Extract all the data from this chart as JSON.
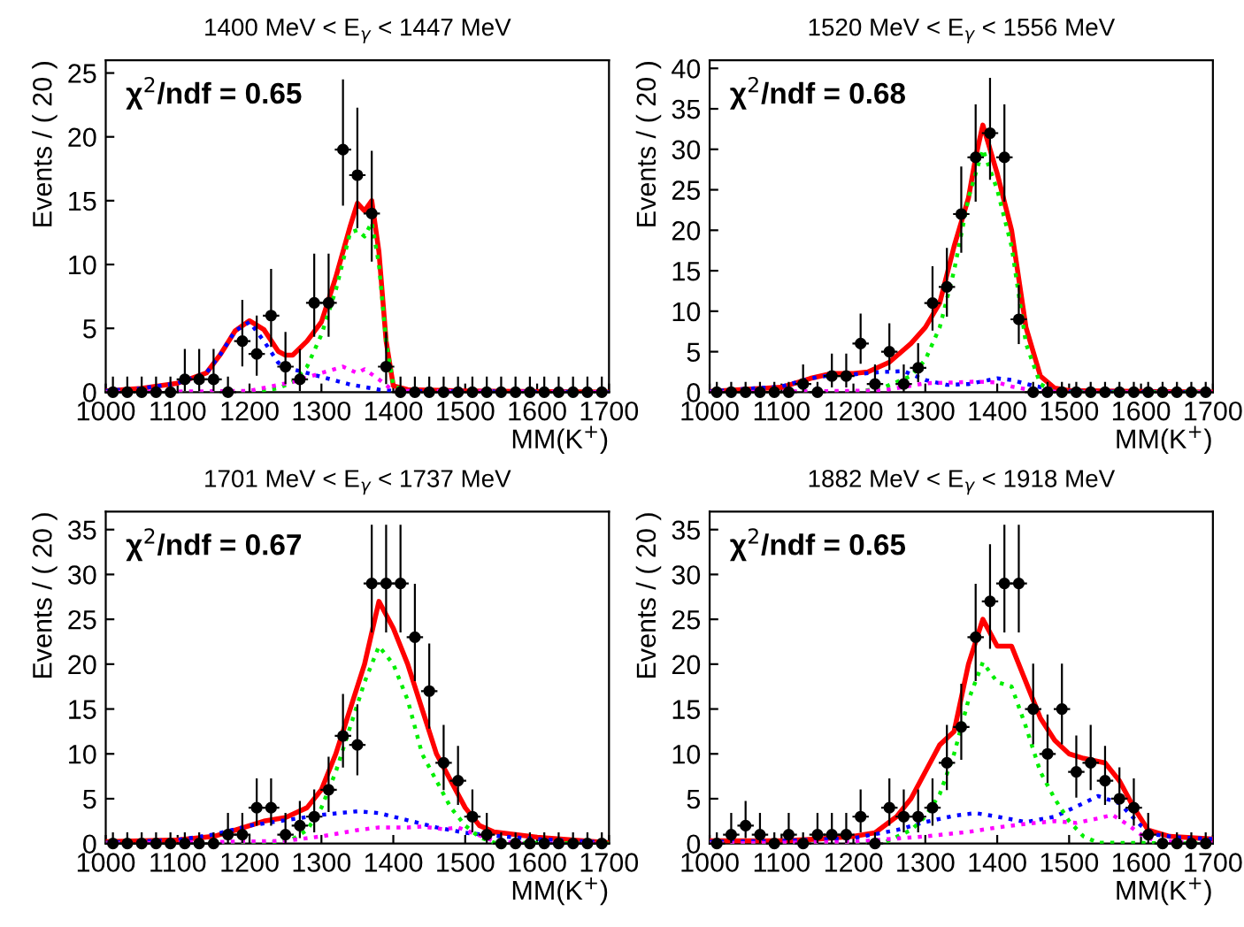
{
  "chart_data": [
    {
      "type": "scatter",
      "title": "1400 MeV < E$_{γ}$ < 1447 MeV",
      "xlabel": "MM(K$^{+}$)",
      "ylabel": "Events / ( 20 )",
      "annotations": [
        "χ$^{2}$/ndf = 0.65"
      ],
      "xlim": [
        1000,
        1700
      ],
      "xticks": [
        1000,
        1100,
        1200,
        1300,
        1400,
        1500,
        1600,
        1700
      ],
      "ylim": [
        0,
        26
      ],
      "yticks": [
        0,
        5,
        10,
        15,
        20,
        25
      ],
      "grid": false,
      "legend": false,
      "series": [
        {
          "color": "#000000",
          "marker": "circle",
          "x": [
            1010,
            1030,
            1050,
            1070,
            1090,
            1110,
            1130,
            1150,
            1170,
            1190,
            1210,
            1230,
            1250,
            1270,
            1290,
            1310,
            1330,
            1350,
            1370,
            1390,
            1410,
            1430,
            1450,
            1470,
            1490,
            1510,
            1530,
            1550,
            1570,
            1590,
            1610,
            1630,
            1650,
            1670,
            1690
          ],
          "values": [
            0,
            0,
            0,
            0,
            0,
            1,
            1,
            1,
            0,
            4,
            3,
            6,
            2,
            1,
            7,
            7,
            19,
            17,
            14,
            2,
            0,
            0,
            0,
            0,
            0,
            0,
            0,
            0,
            0,
            0,
            0,
            0,
            0,
            0,
            0
          ],
          "xerrors": [
            10,
            10,
            10,
            10,
            10,
            10,
            10,
            10,
            10,
            10,
            10,
            10,
            10,
            10,
            10,
            10,
            10,
            10,
            10,
            10,
            10,
            10,
            10,
            10,
            10,
            10,
            10,
            10,
            10,
            10,
            10,
            10,
            10,
            10,
            10
          ],
          "errors": [
            [
              0,
              1.15
            ],
            [
              0,
              1.15
            ],
            [
              0,
              1.15
            ],
            [
              0,
              1.15
            ],
            [
              0,
              1.15
            ],
            [
              0.17,
              3.3
            ],
            [
              0.17,
              3.3
            ],
            [
              0.17,
              3.3
            ],
            [
              0,
              1.15
            ],
            [
              2.09,
              7.16
            ],
            [
              1.37,
              5.92
            ],
            [
              3.62,
              9.58
            ],
            [
              0.71,
              4.64
            ],
            [
              0.17,
              3.3
            ],
            [
              4.42,
              10.77
            ],
            [
              4.42,
              10.77
            ],
            [
              14.68,
              24.43
            ],
            [
              12.92,
              22.2
            ],
            [
              10.3,
              18.83
            ],
            [
              0.71,
              4.64
            ],
            [
              0,
              1.15
            ],
            [
              0,
              1.15
            ],
            [
              0,
              1.15
            ],
            [
              0,
              1.15
            ],
            [
              0,
              1.15
            ],
            [
              0,
              1.15
            ],
            [
              0,
              1.15
            ],
            [
              0,
              1.15
            ],
            [
              0,
              1.15
            ],
            [
              0,
              1.15
            ],
            [
              0,
              1.15
            ],
            [
              0,
              1.15
            ],
            [
              0,
              1.15
            ],
            [
              0,
              1.15
            ],
            [
              0,
              1.15
            ]
          ]
        },
        {
          "type": "line",
          "color": "#ff0000",
          "line_style": "solid",
          "x": [
            1000,
            1050,
            1100,
            1140,
            1160,
            1180,
            1200,
            1220,
            1240,
            1250,
            1260,
            1280,
            1300,
            1320,
            1340,
            1350,
            1360,
            1370,
            1380,
            1390,
            1400,
            1420,
            1500,
            1700
          ],
          "values": [
            0.1,
            0.3,
            0.7,
            1.5,
            3,
            4.8,
            5.6,
            4.9,
            3.2,
            2.9,
            2.9,
            4,
            5.5,
            9,
            13,
            14.8,
            14.2,
            15,
            11,
            4,
            0.5,
            0.2,
            0.1,
            0
          ]
        },
        {
          "type": "line",
          "color": "#0000ff",
          "line_style": "dotted",
          "x": [
            1000,
            1050,
            1100,
            1140,
            1160,
            1180,
            1200,
            1220,
            1240,
            1260,
            1280,
            1300,
            1320,
            1340,
            1360,
            1380,
            1400,
            1700
          ],
          "values": [
            0.1,
            0.3,
            0.7,
            1.5,
            3,
            4.8,
            5.5,
            4,
            2.3,
            1.8,
            1.5,
            1.2,
            0.9,
            0.6,
            0.4,
            0.2,
            0.1,
            0
          ]
        },
        {
          "type": "line",
          "color": "#00ee00",
          "line_style": "dotted",
          "x": [
            1000,
            1200,
            1240,
            1260,
            1280,
            1300,
            1320,
            1340,
            1350,
            1360,
            1370,
            1380,
            1390,
            1400,
            1420,
            1700
          ],
          "values": [
            0,
            0,
            0.3,
            0.8,
            2,
            4.5,
            8,
            12.5,
            12.7,
            12.2,
            13.3,
            10,
            4,
            0.5,
            0,
            0
          ]
        },
        {
          "type": "line",
          "color": "#ff00ff",
          "line_style": "dotted",
          "x": [
            1000,
            1200,
            1260,
            1300,
            1330,
            1350,
            1360,
            1380,
            1400,
            1700
          ],
          "values": [
            0,
            0.1,
            0.8,
            1.5,
            2,
            1.5,
            1.8,
            1,
            0.1,
            0
          ]
        }
      ]
    },
    {
      "type": "scatter",
      "title": "1520 MeV < E$_{γ}$ < 1556 MeV",
      "xlabel": "MM(K$^{+}$)",
      "ylabel": "Events / ( 20 )",
      "annotations": [
        "χ$^{2}$/ndf = 0.68"
      ],
      "xlim": [
        1000,
        1700
      ],
      "xticks": [
        1000,
        1100,
        1200,
        1300,
        1400,
        1500,
        1600,
        1700
      ],
      "ylim": [
        0,
        41
      ],
      "yticks": [
        0,
        5,
        10,
        15,
        20,
        25,
        30,
        35,
        40
      ],
      "grid": false,
      "legend": false,
      "series": [
        {
          "color": "#000000",
          "marker": "circle",
          "x": [
            1010,
            1030,
            1050,
            1070,
            1090,
            1110,
            1130,
            1150,
            1170,
            1190,
            1210,
            1230,
            1250,
            1270,
            1290,
            1310,
            1330,
            1350,
            1370,
            1390,
            1410,
            1430,
            1450,
            1470,
            1490,
            1510,
            1530,
            1550,
            1570,
            1590,
            1610,
            1630,
            1650,
            1670,
            1690
          ],
          "values": [
            0,
            0,
            0,
            0,
            0,
            0,
            1,
            0,
            2,
            2,
            6,
            1,
            5,
            1,
            3,
            11,
            13,
            22,
            29,
            32,
            29,
            9,
            0,
            0,
            0,
            0,
            0,
            0,
            0,
            0,
            0,
            0,
            0,
            0,
            0
          ],
          "xerrors": [
            10,
            10,
            10,
            10,
            10,
            10,
            10,
            10,
            10,
            10,
            10,
            10,
            10,
            10,
            10,
            10,
            10,
            10,
            10,
            10,
            10,
            10,
            10,
            10,
            10,
            10,
            10,
            10,
            10,
            10,
            10,
            10,
            10,
            10,
            10
          ],
          "errors": [
            [
              0,
              1.15
            ],
            [
              0,
              1.15
            ],
            [
              0,
              1.15
            ],
            [
              0,
              1.15
            ],
            [
              0,
              1.15
            ],
            [
              0,
              1.15
            ],
            [
              0.17,
              3.3
            ],
            [
              0,
              1.15
            ],
            [
              0.71,
              4.64
            ],
            [
              0.71,
              4.64
            ],
            [
              3.62,
              9.58
            ],
            [
              0.17,
              3.3
            ],
            [
              2.84,
              8.38
            ],
            [
              0.17,
              3.3
            ],
            [
              1.37,
              5.92
            ],
            [
              7.73,
              15.42
            ],
            [
              9.44,
              17.7
            ],
            [
              17.34,
              27.76
            ],
            [
              23.64,
              35.44
            ],
            [
              26.37,
              38.7
            ],
            [
              23.64,
              35.44
            ],
            [
              6.06,
              13.11
            ],
            [
              0,
              1.15
            ],
            [
              0,
              1.15
            ],
            [
              0,
              1.15
            ],
            [
              0,
              1.15
            ],
            [
              0,
              1.15
            ],
            [
              0,
              1.15
            ],
            [
              0,
              1.15
            ],
            [
              0,
              1.15
            ],
            [
              0,
              1.15
            ],
            [
              0,
              1.15
            ],
            [
              0,
              1.15
            ],
            [
              0,
              1.15
            ],
            [
              0,
              1.15
            ]
          ]
        },
        {
          "type": "line",
          "color": "#ff0000",
          "line_style": "solid",
          "x": [
            1000,
            1100,
            1140,
            1170,
            1200,
            1220,
            1250,
            1280,
            1300,
            1320,
            1340,
            1360,
            1370,
            1380,
            1390,
            1400,
            1420,
            1440,
            1460,
            1480,
            1500,
            1600,
            1700
          ],
          "values": [
            0.1,
            0.6,
            1.7,
            2.3,
            2.3,
            2.5,
            3.7,
            6,
            8,
            11,
            18,
            24,
            29,
            33,
            30,
            27,
            20,
            8,
            2,
            0.5,
            0.2,
            0.1,
            0
          ]
        },
        {
          "type": "line",
          "color": "#0000ff",
          "line_style": "dotted",
          "x": [
            1000,
            1100,
            1140,
            1170,
            1200,
            1240,
            1270,
            1300,
            1330,
            1360,
            1400,
            1420,
            1450,
            1480,
            1500,
            1700
          ],
          "values": [
            0.1,
            0.7,
            1.7,
            2.1,
            2.2,
            2.5,
            2.6,
            1.5,
            0.9,
            1,
            1.7,
            1.5,
            0.8,
            0.3,
            0.1,
            0
          ]
        },
        {
          "type": "line",
          "color": "#00ee00",
          "line_style": "dotted",
          "x": [
            1000,
            1200,
            1240,
            1280,
            1300,
            1320,
            1340,
            1360,
            1380,
            1400,
            1420,
            1440,
            1460,
            1480,
            1700
          ],
          "values": [
            0,
            0,
            0.5,
            2,
            4,
            8,
            15,
            24,
            30,
            25,
            18,
            6,
            1,
            0,
            0
          ]
        },
        {
          "type": "line",
          "color": "#ff00ff",
          "line_style": "dotted",
          "x": [
            1000,
            1240,
            1280,
            1300,
            1340,
            1370,
            1400,
            1420,
            1450,
            1500,
            1700
          ],
          "values": [
            0,
            0.2,
            0.8,
            1.1,
            1.2,
            1.3,
            1.2,
            0.7,
            0.2,
            0,
            0
          ]
        }
      ]
    },
    {
      "type": "scatter",
      "title": "1701 MeV < E$_{γ}$ < 1737 MeV",
      "xlabel": "MM(K$^{+}$)",
      "ylabel": "Events / ( 20 )",
      "annotations": [
        "χ$^{2}$/ndf = 0.67"
      ],
      "xlim": [
        1000,
        1700
      ],
      "xticks": [
        1000,
        1100,
        1200,
        1300,
        1400,
        1500,
        1600,
        1700
      ],
      "ylim": [
        0,
        37
      ],
      "yticks": [
        0,
        5,
        10,
        15,
        20,
        25,
        30,
        35
      ],
      "grid": false,
      "legend": false,
      "series": [
        {
          "color": "#000000",
          "marker": "circle",
          "x": [
            1010,
            1030,
            1050,
            1070,
            1090,
            1110,
            1130,
            1150,
            1170,
            1190,
            1210,
            1230,
            1250,
            1270,
            1290,
            1310,
            1330,
            1350,
            1370,
            1390,
            1410,
            1430,
            1450,
            1470,
            1490,
            1510,
            1530,
            1550,
            1570,
            1590,
            1610,
            1630,
            1650,
            1670,
            1690
          ],
          "values": [
            0,
            0,
            0,
            0,
            0,
            0,
            0,
            0,
            1,
            1,
            4,
            4,
            1,
            2,
            3,
            6,
            12,
            11,
            29,
            29,
            29,
            23,
            17,
            9,
            7,
            3,
            1,
            0,
            0,
            0,
            0,
            0,
            0,
            0,
            0
          ],
          "xerrors": [
            10,
            10,
            10,
            10,
            10,
            10,
            10,
            10,
            10,
            10,
            10,
            10,
            10,
            10,
            10,
            10,
            10,
            10,
            10,
            10,
            10,
            10,
            10,
            10,
            10,
            10,
            10,
            10,
            10,
            10,
            10,
            10,
            10,
            10,
            10
          ],
          "errors": [
            [
              0,
              1.15
            ],
            [
              0,
              1.15
            ],
            [
              0,
              1.15
            ],
            [
              0,
              1.15
            ],
            [
              0,
              1.15
            ],
            [
              0,
              1.15
            ],
            [
              0,
              1.15
            ],
            [
              0,
              1.15
            ],
            [
              0.17,
              3.3
            ],
            [
              0.17,
              3.3
            ],
            [
              2.09,
              7.16
            ],
            [
              2.09,
              7.16
            ],
            [
              0.17,
              3.3
            ],
            [
              0.71,
              4.64
            ],
            [
              1.37,
              5.92
            ],
            [
              3.62,
              9.58
            ],
            [
              8.58,
              16.56
            ],
            [
              7.73,
              15.42
            ],
            [
              23.64,
              35.44
            ],
            [
              23.64,
              35.44
            ],
            [
              23.64,
              35.44
            ],
            [
              18.23,
              28.86
            ],
            [
              12.92,
              22.2
            ],
            [
              6.06,
              13.11
            ],
            [
              4.42,
              10.77
            ],
            [
              1.37,
              5.92
            ],
            [
              0.17,
              3.3
            ],
            [
              0,
              1.15
            ],
            [
              0,
              1.15
            ],
            [
              0,
              1.15
            ],
            [
              0,
              1.15
            ],
            [
              0,
              1.15
            ],
            [
              0,
              1.15
            ],
            [
              0,
              1.15
            ],
            [
              0,
              1.15
            ]
          ]
        },
        {
          "type": "line",
          "color": "#ff0000",
          "line_style": "solid",
          "x": [
            1000,
            1100,
            1150,
            1180,
            1220,
            1250,
            1280,
            1300,
            1320,
            1340,
            1360,
            1380,
            1400,
            1420,
            1440,
            1460,
            1480,
            1500,
            1520,
            1540,
            1600,
            1700
          ],
          "values": [
            0.2,
            0.4,
            0.8,
            1.5,
            2.5,
            2.9,
            4,
            6,
            10,
            15,
            20,
            27,
            24,
            20,
            15,
            10,
            7,
            4,
            2,
            1.3,
            0.7,
            0.1
          ]
        },
        {
          "type": "line",
          "color": "#0000ff",
          "line_style": "dotted",
          "x": [
            1000,
            1100,
            1150,
            1200,
            1250,
            1300,
            1350,
            1380,
            1420,
            1460,
            1500,
            1550,
            1600,
            1700
          ],
          "values": [
            0.1,
            0.4,
            1,
            2,
            2.6,
            3.2,
            3.6,
            3.4,
            2.6,
            1.8,
            1.2,
            0.8,
            0.5,
            0.1
          ]
        },
        {
          "type": "line",
          "color": "#00ee00",
          "line_style": "dotted",
          "x": [
            1000,
            1220,
            1260,
            1280,
            1300,
            1320,
            1340,
            1360,
            1380,
            1400,
            1420,
            1440,
            1460,
            1480,
            1500,
            1520,
            1540,
            1700
          ],
          "values": [
            0,
            0,
            0.5,
            1.5,
            4,
            8,
            13,
            18,
            22,
            20,
            16,
            10,
            7,
            4,
            2,
            0.7,
            0.1,
            0
          ]
        },
        {
          "type": "line",
          "color": "#ff00ff",
          "line_style": "dotted",
          "x": [
            1000,
            1250,
            1300,
            1350,
            1380,
            1420,
            1440,
            1470,
            1490,
            1510,
            1540,
            1580,
            1700
          ],
          "values": [
            0,
            0.3,
            0.8,
            1.5,
            1.8,
            1.8,
            1.9,
            1.6,
            1.8,
            1.2,
            0.3,
            0,
            0
          ]
        }
      ]
    },
    {
      "type": "scatter",
      "title": "1882 MeV < E$_{γ}$ < 1918 MeV",
      "xlabel": "MM(K$^{+}$)",
      "ylabel": "Events / ( 20 )",
      "annotations": [
        "χ$^{2}$/ndf = 0.65"
      ],
      "xlim": [
        1000,
        1700
      ],
      "xticks": [
        1000,
        1100,
        1200,
        1300,
        1400,
        1500,
        1600,
        1700
      ],
      "ylim": [
        0,
        37
      ],
      "yticks": [
        0,
        5,
        10,
        15,
        20,
        25,
        30,
        35
      ],
      "grid": false,
      "legend": false,
      "series": [
        {
          "color": "#000000",
          "marker": "circle",
          "x": [
            1010,
            1030,
            1050,
            1070,
            1090,
            1110,
            1130,
            1150,
            1170,
            1190,
            1210,
            1230,
            1250,
            1270,
            1290,
            1310,
            1330,
            1350,
            1370,
            1390,
            1410,
            1430,
            1450,
            1470,
            1490,
            1510,
            1530,
            1550,
            1570,
            1590,
            1610,
            1630,
            1650,
            1670,
            1690
          ],
          "values": [
            0,
            1,
            2,
            1,
            0,
            1,
            0,
            1,
            1,
            1,
            3,
            0,
            4,
            3,
            3,
            4,
            9,
            13,
            23,
            27,
            29,
            29,
            15,
            10,
            15,
            8,
            9,
            7,
            5,
            4,
            1,
            0,
            0,
            0,
            0
          ],
          "xerrors": [
            10,
            10,
            10,
            10,
            10,
            10,
            10,
            10,
            10,
            10,
            10,
            10,
            10,
            10,
            10,
            10,
            10,
            10,
            10,
            10,
            10,
            10,
            10,
            10,
            10,
            10,
            10,
            10,
            10,
            10,
            10,
            10,
            10,
            10,
            10
          ],
          "errors": [
            [
              0,
              1.15
            ],
            [
              0.17,
              3.3
            ],
            [
              0.71,
              4.64
            ],
            [
              0.17,
              3.3
            ],
            [
              0,
              1.15
            ],
            [
              0.17,
              3.3
            ],
            [
              0,
              1.15
            ],
            [
              0.17,
              3.3
            ],
            [
              0.17,
              3.3
            ],
            [
              0.17,
              3.3
            ],
            [
              1.37,
              5.92
            ],
            [
              0,
              1.15
            ],
            [
              2.09,
              7.16
            ],
            [
              1.37,
              5.92
            ],
            [
              1.37,
              5.92
            ],
            [
              2.09,
              7.16
            ],
            [
              6.06,
              13.11
            ],
            [
              9.44,
              17.7
            ],
            [
              18.23,
              28.86
            ],
            [
              21.83,
              33.26
            ],
            [
              23.64,
              35.44
            ],
            [
              23.64,
              35.44
            ],
            [
              11.17,
              19.96
            ],
            [
              6.89,
              14.27
            ],
            [
              11.17,
              19.96
            ],
            [
              5.23,
              11.95
            ],
            [
              6.06,
              13.11
            ],
            [
              4.42,
              10.77
            ],
            [
              2.84,
              8.38
            ],
            [
              2.09,
              7.16
            ],
            [
              0.17,
              3.3
            ],
            [
              0,
              1.15
            ],
            [
              0,
              1.15
            ],
            [
              0,
              1.15
            ],
            [
              0,
              1.15
            ]
          ]
        },
        {
          "type": "line",
          "color": "#ff0000",
          "line_style": "solid",
          "x": [
            1000,
            1100,
            1150,
            1200,
            1230,
            1260,
            1280,
            1300,
            1320,
            1340,
            1360,
            1380,
            1400,
            1420,
            1440,
            1460,
            1480,
            1500,
            1520,
            1550,
            1570,
            1590,
            1610,
            1640,
            1700
          ],
          "values": [
            0.3,
            0.3,
            0.5,
            0.8,
            1.2,
            3,
            5,
            8,
            11,
            12.5,
            20,
            25,
            22,
            22,
            18,
            14,
            11.5,
            10,
            9.5,
            9,
            7,
            4,
            1.5,
            0.8,
            0.5
          ]
        },
        {
          "type": "line",
          "color": "#0000ff",
          "line_style": "dotted",
          "x": [
            1000,
            1100,
            1200,
            1260,
            1300,
            1340,
            1370,
            1400,
            1440,
            1480,
            1520,
            1540,
            1570,
            1600,
            1620,
            1650,
            1700
          ],
          "values": [
            0.2,
            0.3,
            0.6,
            1.5,
            2.4,
            3.1,
            3.4,
            3,
            2.4,
            3,
            4.5,
            5.3,
            4.5,
            2,
            1,
            0.7,
            0.5
          ]
        },
        {
          "type": "line",
          "color": "#00ee00",
          "line_style": "dotted",
          "x": [
            1000,
            1240,
            1280,
            1300,
            1320,
            1340,
            1360,
            1380,
            1400,
            1420,
            1440,
            1460,
            1480,
            1500,
            1520,
            1540,
            1700
          ],
          "values": [
            0,
            0,
            1.5,
            3,
            5.5,
            10,
            16,
            20.2,
            18,
            17.5,
            13,
            8,
            5,
            2.5,
            0.8,
            0.1,
            0
          ]
        },
        {
          "type": "line",
          "color": "#ff00ff",
          "line_style": "dotted",
          "x": [
            1000,
            1200,
            1300,
            1360,
            1400,
            1440,
            1480,
            1510,
            1540,
            1560,
            1580,
            1600,
            1620,
            1700
          ],
          "values": [
            0,
            0.2,
            0.8,
            1.3,
            1.8,
            2.2,
            2.5,
            2.3,
            2.8,
            3.2,
            2.2,
            1,
            0.3,
            0
          ]
        }
      ]
    }
  ]
}
